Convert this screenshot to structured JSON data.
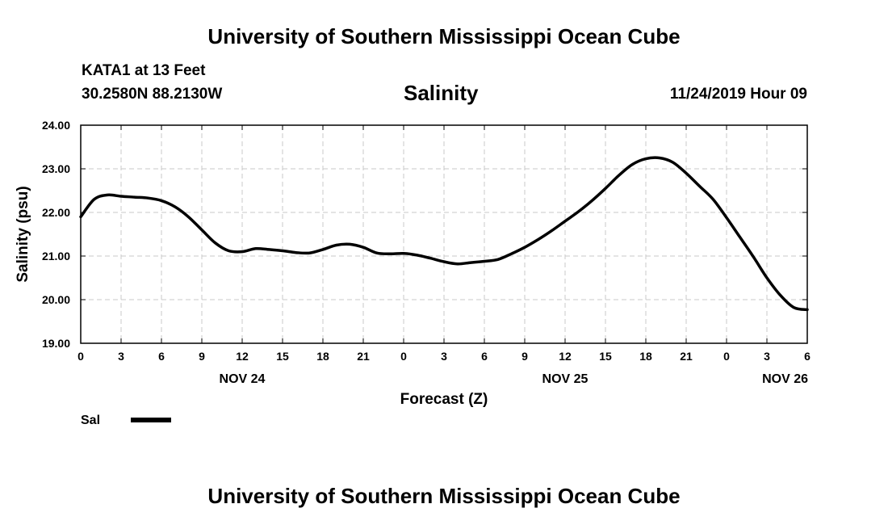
{
  "header": {
    "main_title": "University of Southern Mississippi Ocean Cube",
    "station": "KATA1 at 13 Feet",
    "coordinates": "30.2580N 88.2130W",
    "timestamp": "11/24/2019 Hour 09"
  },
  "footer": {
    "title": "University of Southern Mississippi Ocean Cube"
  },
  "chart_data": {
    "type": "line",
    "title": "Salinity",
    "xlabel": "Forecast (Z)",
    "ylabel": "Salinity (psu)",
    "xlim": [
      0,
      54
    ],
    "ylim": [
      19,
      24
    ],
    "yticks": [
      "19.00",
      "20.00",
      "21.00",
      "22.00",
      "23.00",
      "24.00"
    ],
    "xtick_labels": [
      "0",
      "3",
      "6",
      "9",
      "12",
      "15",
      "18",
      "21",
      "0",
      "3",
      "6",
      "9",
      "12",
      "15",
      "18",
      "21",
      "0",
      "3",
      "6"
    ],
    "day_labels": [
      {
        "hour": 12,
        "label": "NOV 24"
      },
      {
        "hour": 36,
        "label": "NOV 25"
      },
      {
        "hour": 54,
        "label": "NOV 26"
      }
    ],
    "grid": true,
    "legend": {
      "position": "bottom-left",
      "entries": [
        "Sal"
      ]
    },
    "series": [
      {
        "name": "Sal",
        "color": "#000000",
        "x": [
          0,
          1,
          2,
          3,
          4,
          5,
          6,
          7,
          8,
          9,
          10,
          11,
          12,
          13,
          14,
          15,
          16,
          17,
          18,
          19,
          20,
          21,
          22,
          23,
          24,
          25,
          26,
          27,
          28,
          29,
          30,
          31,
          32,
          33,
          34,
          35,
          36,
          37,
          38,
          39,
          40,
          41,
          42,
          43,
          44,
          45,
          46,
          47,
          48,
          49,
          50,
          51,
          52,
          53,
          54
        ],
        "values": [
          21.9,
          22.3,
          22.4,
          22.37,
          22.35,
          22.33,
          22.27,
          22.13,
          21.9,
          21.6,
          21.3,
          21.12,
          21.1,
          21.17,
          21.15,
          21.12,
          21.08,
          21.07,
          21.15,
          21.25,
          21.27,
          21.2,
          21.07,
          21.05,
          21.06,
          21.02,
          20.95,
          20.87,
          20.82,
          20.85,
          20.88,
          20.92,
          21.05,
          21.2,
          21.38,
          21.58,
          21.8,
          22.02,
          22.27,
          22.55,
          22.85,
          23.1,
          23.23,
          23.25,
          23.15,
          22.9,
          22.6,
          22.3,
          21.88,
          21.43,
          20.98,
          20.5,
          20.1,
          19.82,
          19.77
        ]
      }
    ]
  }
}
